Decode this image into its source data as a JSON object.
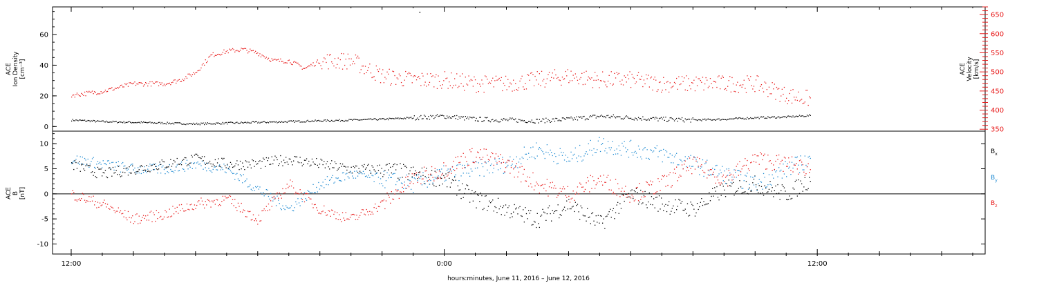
{
  "colors": {
    "black": "#000000",
    "red": "#e81c1c",
    "blue": "#1e8ad2"
  },
  "chart_data": [
    {
      "type": "scatter",
      "panel": "top",
      "ylabel_left": [
        "ACE",
        "Ion Density",
        "[cm⁻³]"
      ],
      "ylabel_right": [
        "ACE",
        "Velocity",
        "[km/s]"
      ],
      "left_ticks": [
        "0",
        "20",
        "40",
        "60"
      ],
      "right_ticks": [
        "350",
        "400",
        "450",
        "500",
        "550",
        "600",
        "650"
      ],
      "ylim_left": [
        -3,
        78
      ],
      "ylim_right": [
        345,
        670
      ],
      "series": [
        {
          "axis": "left",
          "color": "black",
          "x": [
            0,
            1,
            2,
            3,
            4,
            5,
            6,
            7,
            8,
            9,
            10,
            11,
            12,
            13,
            14,
            15,
            16,
            17,
            18,
            19,
            20,
            21,
            22,
            23,
            23.8
          ],
          "y": [
            4.5,
            3.5,
            3.0,
            2.5,
            2.0,
            2.5,
            3.0,
            3.5,
            4.0,
            4.5,
            5.0,
            6.0,
            7.0,
            5.0,
            4.5,
            4.0,
            5.0,
            7.0,
            6.0,
            5.0,
            4.5,
            5.0,
            6.0,
            6.5,
            7.5
          ]
        },
        {
          "axis": "right",
          "color": "red",
          "x": [
            0,
            1,
            2,
            3,
            3.5,
            4,
            4.5,
            5,
            5.5,
            6,
            6.5,
            7,
            7.5,
            8,
            9,
            10,
            11,
            12,
            13,
            14,
            15,
            16,
            17,
            18,
            19,
            20,
            21,
            22,
            23,
            23.8
          ],
          "y": [
            440,
            450,
            470,
            470,
            480,
            500,
            545,
            555,
            560,
            550,
            530,
            530,
            510,
            530,
            530,
            490,
            480,
            480,
            470,
            470,
            480,
            490,
            480,
            480,
            470,
            470,
            470,
            470,
            440,
            430
          ]
        }
      ]
    },
    {
      "type": "scatter",
      "panel": "bottom",
      "ylabel_left": [
        "ACE",
        "B",
        "[nT]"
      ],
      "left_ticks": [
        "-10",
        "-5",
        "0",
        "5",
        "10"
      ],
      "ylim": [
        -12,
        12.5
      ],
      "zero_line": true,
      "legend": [
        {
          "sym": "B",
          "sub": "x",
          "color": "black"
        },
        {
          "sym": "B",
          "sub": "y",
          "color": "blue"
        },
        {
          "sym": "B",
          "sub": "z",
          "color": "red"
        }
      ],
      "series": [
        {
          "name": "Bx",
          "color": "black",
          "x": [
            0,
            1,
            2,
            3,
            4,
            5,
            6,
            7,
            8,
            9,
            10,
            11,
            12,
            13,
            14,
            15,
            16,
            17,
            18,
            19,
            20,
            21,
            22,
            23,
            23.8
          ],
          "y": [
            6,
            4,
            5,
            6,
            7,
            6,
            6,
            7,
            6,
            5,
            5,
            4,
            3,
            -1,
            -3,
            -5,
            -2,
            -6,
            0,
            -2,
            -3,
            1,
            2,
            0,
            3
          ]
        },
        {
          "name": "By",
          "color": "blue",
          "x": [
            0,
            1,
            2,
            3,
            4,
            5,
            6,
            7,
            8,
            9,
            10,
            11,
            12,
            13,
            14,
            15,
            16,
            17,
            18,
            19,
            20,
            21,
            22,
            23,
            23.8
          ],
          "y": [
            7,
            6,
            5,
            5,
            6,
            5,
            1,
            -3,
            2,
            4,
            3,
            2,
            4,
            5,
            6,
            9,
            7,
            10,
            9,
            8,
            6,
            4,
            2,
            5,
            7
          ]
        },
        {
          "name": "Bz",
          "color": "red",
          "x": [
            0,
            1,
            2,
            3,
            4,
            5,
            6,
            7,
            8,
            9,
            10,
            11,
            12,
            13,
            14,
            15,
            16,
            17,
            18,
            19,
            20,
            21,
            22,
            23,
            23.8
          ],
          "y": [
            0,
            -2,
            -5,
            -4,
            -2,
            -1,
            -5,
            2,
            -3,
            -5,
            -2,
            3,
            5,
            8,
            6,
            2,
            0,
            3,
            0,
            2,
            6,
            3,
            7,
            6,
            5
          ]
        }
      ]
    }
  ],
  "x_axis": {
    "ticks": [
      "12:00",
      "0:00",
      "12:00"
    ],
    "tick_hours": [
      0,
      12,
      24
    ],
    "xlim": [
      -0.6,
      29.4
    ],
    "label": "hours:minutes, June 11, 2016 – June 12, 2016"
  }
}
